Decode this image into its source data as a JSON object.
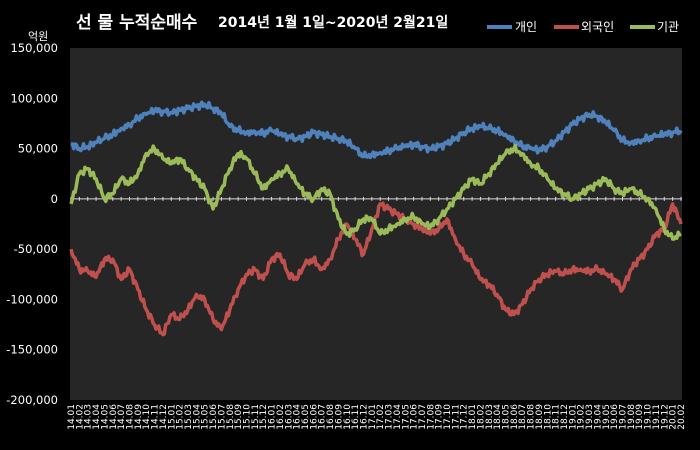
{
  "chart_data": {
    "type": "line",
    "title": "선 물 누적순매수",
    "subtitle": "2014년 1월 1일~2020년 2월21일",
    "ylabel": "억원",
    "xlabel": "",
    "ylim": [
      -200000,
      150000
    ],
    "yticks": [
      150000,
      100000,
      50000,
      0,
      -50000,
      -100000,
      -150000,
      -200000
    ],
    "ytick_labels": [
      "150,000",
      "100,000",
      "50,000",
      "0",
      "-50,000",
      "-100,000",
      "-150,000",
      "-200,000"
    ],
    "grid": false,
    "legend_position": "top-right",
    "x": [
      "14.01",
      "14.02",
      "14.03",
      "14.04",
      "14.05",
      "14.06",
      "14.07",
      "14.08",
      "14.09",
      "14.10",
      "14.11",
      "14.12",
      "15.01",
      "15.02",
      "15.03",
      "15.04",
      "15.05",
      "15.06",
      "15.07",
      "15.08",
      "15.09",
      "15.10",
      "15.11",
      "15.12",
      "16.01",
      "16.02",
      "16.03",
      "16.04",
      "16.05",
      "16.06",
      "16.07",
      "16.08",
      "16.09",
      "16.10",
      "16.11",
      "16.12",
      "17.01",
      "17.02",
      "17.03",
      "17.04",
      "17.05",
      "17.06",
      "17.07",
      "17.08",
      "17.09",
      "17.10",
      "17.11",
      "17.12",
      "18.01",
      "18.02",
      "18.03",
      "18.04",
      "18.05",
      "18.06",
      "18.07",
      "18.08",
      "18.09",
      "18.10",
      "18.11",
      "18.12",
      "19.01",
      "19.02",
      "19.03",
      "19.04",
      "19.05",
      "19.06",
      "19.07",
      "19.08",
      "19.09",
      "19.10",
      "19.11",
      "19.12",
      "20.01",
      "20.02"
    ],
    "series": [
      {
        "name": "개인",
        "color": "#4f81bd",
        "values": [
          55000,
          50000,
          52000,
          56000,
          60000,
          64000,
          70000,
          74000,
          80000,
          84000,
          88000,
          87000,
          86000,
          88000,
          90000,
          92000,
          94000,
          90000,
          85000,
          72000,
          68000,
          66000,
          67000,
          65000,
          68000,
          64000,
          62000,
          60000,
          62000,
          66000,
          64000,
          62000,
          60000,
          57000,
          50000,
          42000,
          44000,
          46000,
          48000,
          50000,
          52000,
          54000,
          52000,
          50000,
          52000,
          55000,
          60000,
          66000,
          70000,
          72000,
          70000,
          68000,
          64000,
          58000,
          52000,
          50000,
          48000,
          52000,
          58000,
          66000,
          74000,
          80000,
          84000,
          82000,
          76000,
          68000,
          58000,
          56000,
          58000,
          60000,
          62000,
          64000,
          66000,
          68000
        ]
      },
      {
        "name": "외국인",
        "color": "#c0504d",
        "values": [
          -50000,
          -70000,
          -72000,
          -78000,
          -60000,
          -60000,
          -80000,
          -70000,
          -90000,
          -110000,
          -125000,
          -135000,
          -115000,
          -120000,
          -110000,
          -95000,
          -100000,
          -120000,
          -130000,
          -110000,
          -90000,
          -75000,
          -70000,
          -80000,
          -60000,
          -55000,
          -75000,
          -80000,
          -65000,
          -60000,
          -70000,
          -60000,
          -40000,
          -25000,
          -40000,
          -55000,
          -30000,
          -5000,
          -10000,
          -15000,
          -20000,
          -25000,
          -30000,
          -35000,
          -30000,
          -20000,
          -40000,
          -55000,
          -65000,
          -80000,
          -85000,
          -95000,
          -110000,
          -115000,
          -105000,
          -90000,
          -80000,
          -75000,
          -72000,
          -75000,
          -70000,
          -70000,
          -72000,
          -70000,
          -75000,
          -80000,
          -90000,
          -70000,
          -60000,
          -50000,
          -35000,
          -30000,
          -5000,
          -25000
        ]
      },
      {
        "name": "기관",
        "color": "#9bbb59",
        "values": [
          -5000,
          25000,
          30000,
          20000,
          0,
          5000,
          20000,
          15000,
          25000,
          45000,
          50000,
          40000,
          35000,
          40000,
          30000,
          20000,
          10000,
          -10000,
          10000,
          30000,
          45000,
          40000,
          25000,
          10000,
          20000,
          25000,
          30000,
          15000,
          5000,
          0,
          10000,
          5000,
          -20000,
          -35000,
          -30000,
          -20000,
          -20000,
          -35000,
          -30000,
          -25000,
          -20000,
          -18000,
          -25000,
          -28000,
          -20000,
          -10000,
          0,
          10000,
          20000,
          15000,
          25000,
          35000,
          45000,
          50000,
          45000,
          35000,
          30000,
          20000,
          10000,
          5000,
          0,
          5000,
          10000,
          15000,
          20000,
          10000,
          5000,
          10000,
          5000,
          0,
          -10000,
          -30000,
          -40000,
          -35000
        ]
      }
    ]
  }
}
